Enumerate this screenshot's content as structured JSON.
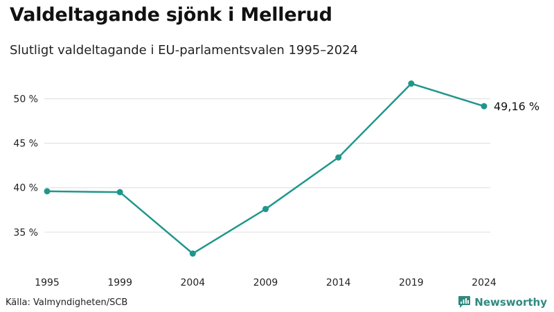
{
  "header": {
    "title": "Valdeltagande sjönk i Mellerud",
    "subtitle": "Slutligt valdeltagande i EU-parlamentsvalen 1995–2024"
  },
  "footer": {
    "source": "Källa: Valmyndigheten/SCB",
    "brand": "Newsworthy"
  },
  "colors": {
    "line": "#1f968b",
    "grid": "#dddddd",
    "brand": "#2e8a80"
  },
  "chart_data": {
    "type": "line",
    "title": "Valdeltagande sjönk i Mellerud",
    "subtitle": "Slutligt valdeltagande i EU-parlamentsvalen 1995–2024",
    "xlabel": "",
    "ylabel": "",
    "categories": [
      "1995",
      "1999",
      "2004",
      "2009",
      "2014",
      "2019",
      "2024"
    ],
    "series": [
      {
        "name": "Valdeltagande (%)",
        "values": [
          39.6,
          39.5,
          32.6,
          37.6,
          43.4,
          51.7,
          49.16
        ]
      }
    ],
    "yticks": [
      {
        "value": 35,
        "label": "35 %"
      },
      {
        "value": 40,
        "label": "40 %"
      },
      {
        "value": 45,
        "label": "45 %"
      },
      {
        "value": 50,
        "label": "50 %"
      }
    ],
    "ylim": [
      31.1,
      53.3
    ],
    "grid": true,
    "end_label": "49,16 %",
    "legend": "none"
  }
}
